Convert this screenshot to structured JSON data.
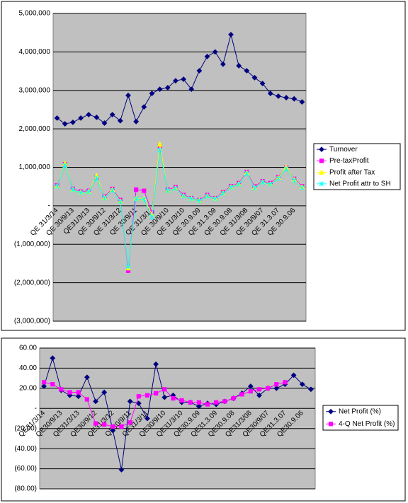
{
  "chart_data": [
    {
      "type": "line",
      "categories": [
        "QE 31/3/14",
        null,
        "QE 30/9/13",
        null,
        "QE31/3/13",
        null,
        "QE 30/9/12",
        null,
        "QE 31/3/12",
        null,
        "QE 30/9/11",
        null,
        "QE 31/3/11",
        null,
        "QE 30/9/10",
        null,
        "QE 31/3/10",
        null,
        "QE 30.9.09",
        null,
        "QE 31.3.09",
        null,
        "QE 30.9.08",
        null,
        "QE 31/3/08",
        null,
        "QE 30/9/07",
        null,
        "QE 31.3.07",
        null,
        "QE 30.9.06",
        null
      ],
      "series": [
        {
          "name": "Turnover",
          "color": "#000080",
          "marker": "diamond",
          "values": [
            2280000,
            2130000,
            2170000,
            2280000,
            2370000,
            2300000,
            2150000,
            2370000,
            2210000,
            2870000,
            2190000,
            2570000,
            2920000,
            3030000,
            3070000,
            3250000,
            3290000,
            3030000,
            3510000,
            3880000,
            4000000,
            3680000,
            4450000,
            3640000,
            3510000,
            3330000,
            3180000,
            2920000,
            2850000,
            2810000,
            2780000,
            2700000
          ]
        },
        {
          "name": "Pre-taxProfit",
          "color": "#ff00ff",
          "marker": "square",
          "values": [
            530000,
            1080000,
            440000,
            370000,
            390000,
            740000,
            240000,
            440000,
            150000,
            -1690000,
            420000,
            390000,
            -170000,
            1540000,
            420000,
            480000,
            280000,
            200000,
            150000,
            280000,
            200000,
            350000,
            510000,
            590000,
            880000,
            500000,
            640000,
            590000,
            750000,
            990000,
            700000,
            510000
          ]
        },
        {
          "name": "Profit after Tax",
          "color": "#ffff00",
          "marker": "triangle",
          "values": [
            510000,
            1100000,
            420000,
            350000,
            370000,
            780000,
            210000,
            420000,
            120000,
            -1620000,
            190000,
            180000,
            -220000,
            1600000,
            400000,
            460000,
            260000,
            190000,
            140000,
            260000,
            190000,
            330000,
            490000,
            570000,
            860000,
            470000,
            620000,
            570000,
            730000,
            1000000,
            680000,
            490000
          ]
        },
        {
          "name": "Net Profit attr to SH",
          "color": "#00ffff",
          "marker": "star",
          "values": [
            500000,
            1050000,
            410000,
            340000,
            360000,
            720000,
            200000,
            400000,
            110000,
            -1580000,
            180000,
            170000,
            -300000,
            1450000,
            390000,
            450000,
            250000,
            180000,
            130000,
            250000,
            180000,
            320000,
            480000,
            560000,
            840000,
            460000,
            610000,
            560000,
            710000,
            960000,
            660000,
            470000
          ]
        }
      ],
      "ylim": [
        -3000000,
        5000000
      ],
      "yticks": [
        {
          "value": -3000000,
          "label": "(3,000,000)"
        },
        {
          "value": -2000000,
          "label": "(2,000,000)"
        },
        {
          "value": -1000000,
          "label": "(1,000,000)"
        },
        {
          "value": 0,
          "label": "-"
        },
        {
          "value": 1000000,
          "label": "1,000,000"
        },
        {
          "value": 2000000,
          "label": "2,000,000"
        },
        {
          "value": 3000000,
          "label": "3,000,000"
        },
        {
          "value": 4000000,
          "label": "4,000,000"
        },
        {
          "value": 5000000,
          "label": "5,000,000"
        }
      ],
      "grid": true,
      "legend": "right"
    },
    {
      "type": "line",
      "categories": [
        "QE31/3/14",
        null,
        "QE30/9/13",
        null,
        "QE31/3/13",
        null,
        "QE30/9/12",
        null,
        "QE31/3/12",
        null,
        "QE30/9/11",
        null,
        "QE31/3/11",
        null,
        "QE30/9/10",
        null,
        "QE31/3/10",
        null,
        "QE30.9.09",
        null,
        "QE31.3.09",
        null,
        "QE30.9.08",
        null,
        "QE31/3/08",
        null,
        "QE30/9/07",
        null,
        "QE31.3.07",
        null,
        "QE30.9.06",
        null
      ],
      "series": [
        {
          "name": "Net Profit (%)",
          "color": "#000080",
          "marker": "diamond",
          "values": [
            22,
            50,
            18,
            13,
            12,
            31,
            7,
            16,
            -22,
            -61,
            7,
            5,
            -10,
            44,
            11,
            13,
            6,
            6,
            2,
            5,
            4,
            7,
            10,
            15,
            22,
            13,
            20,
            20,
            24,
            33,
            24,
            19
          ]
        },
        {
          "name": "4-Q Net Profit (%)",
          "color": "#ff00ff",
          "marker": "square",
          "values": [
            26,
            24,
            19,
            16,
            16,
            9,
            -15,
            -16,
            -18,
            -18,
            -14,
            12,
            13,
            15,
            19,
            10,
            8,
            6,
            6,
            4,
            6,
            7,
            10,
            14,
            17,
            19,
            20,
            24,
            26,
            null,
            null,
            null
          ]
        }
      ],
      "ylim": [
        -80,
        60
      ],
      "yticks": [
        {
          "value": -80,
          "label": "(80.00)"
        },
        {
          "value": -60,
          "label": "(60.00)"
        },
        {
          "value": -40,
          "label": "(40.00)"
        },
        {
          "value": -20,
          "label": "(20.00)"
        },
        {
          "value": 0,
          "label": "-"
        },
        {
          "value": 20,
          "label": "20.00"
        },
        {
          "value": 40,
          "label": "40.00"
        },
        {
          "value": 60,
          "label": "60.00"
        }
      ],
      "grid": true,
      "legend": "right"
    }
  ]
}
